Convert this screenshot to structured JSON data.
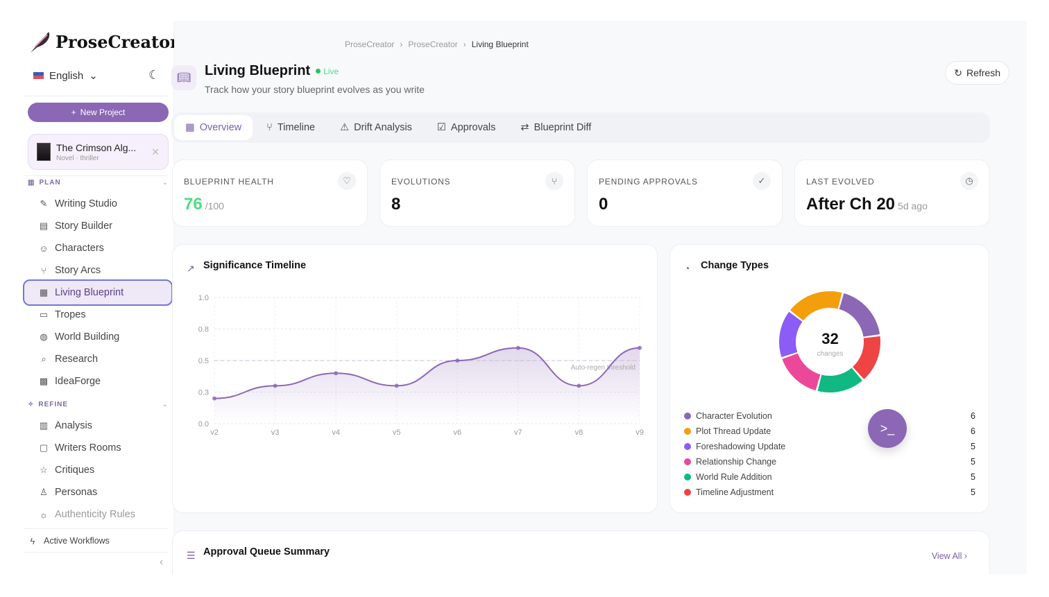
{
  "app": {
    "name": "ProseCreator",
    "language": "English",
    "new_project": "New Project"
  },
  "project": {
    "title": "The Crimson Alg...",
    "subtitle": "Novel · thriller"
  },
  "sidebar": {
    "plan_label": "PLAN",
    "refine_label": "REFINE",
    "plan_items": [
      {
        "label": "Writing Studio",
        "icon": "✎"
      },
      {
        "label": "Story Builder",
        "icon": "▤"
      },
      {
        "label": "Characters",
        "icon": "☺"
      },
      {
        "label": "Story Arcs",
        "icon": "⑂"
      },
      {
        "label": "Living Blueprint",
        "icon": "▦"
      },
      {
        "label": "Tropes",
        "icon": "▭"
      },
      {
        "label": "World Building",
        "icon": "◍"
      },
      {
        "label": "Research",
        "icon": "⌕"
      },
      {
        "label": "IdeaForge",
        "icon": "▩"
      }
    ],
    "refine_items": [
      {
        "label": "Analysis",
        "icon": "▥"
      },
      {
        "label": "Writers Rooms",
        "icon": "▢"
      },
      {
        "label": "Critiques",
        "icon": "☆"
      },
      {
        "label": "Personas",
        "icon": "♙"
      },
      {
        "label": "Authenticity Rules",
        "icon": "☼"
      }
    ],
    "active_workflows": "Active Workflows"
  },
  "breadcrumb": [
    "ProseCreator",
    "ProseCreator",
    "Living Blueprint"
  ],
  "page": {
    "title": "Living Blueprint",
    "status": "Live",
    "subtitle": "Track how your story blueprint evolves as you write",
    "refresh": "Refresh"
  },
  "tabs": [
    {
      "label": "Overview",
      "icon": "▦"
    },
    {
      "label": "Timeline",
      "icon": "⑂"
    },
    {
      "label": "Drift Analysis",
      "icon": "⚠"
    },
    {
      "label": "Approvals",
      "icon": "☑"
    },
    {
      "label": "Blueprint Diff",
      "icon": "⇄"
    }
  ],
  "stats": [
    {
      "label": "BLUEPRINT HEALTH",
      "value": "76",
      "suffix": "/100",
      "icon": "♡",
      "color": "#4ade80"
    },
    {
      "label": "EVOLUTIONS",
      "value": "8",
      "icon": "⑂"
    },
    {
      "label": "PENDING APPROVALS",
      "value": "0",
      "icon": "✓"
    },
    {
      "label": "LAST EVOLVED",
      "value": "After Ch 20",
      "suffix": "5d ago",
      "icon": "◷"
    }
  ],
  "chart_data": [
    {
      "type": "area",
      "title": "Significance Timeline",
      "x": [
        "v2",
        "v3",
        "v4",
        "v5",
        "v6",
        "v7",
        "v8",
        "v9"
      ],
      "values": [
        0.2,
        0.3,
        0.4,
        0.3,
        0.5,
        0.6,
        0.3,
        0.6
      ],
      "ylim": [
        0,
        1
      ],
      "yticks": [
        0,
        0.25,
        0.5,
        0.75,
        1
      ],
      "ytick_labels": [
        "0.0",
        "0.3",
        "0.5",
        "0.8",
        "1.0"
      ],
      "threshold": {
        "value": 0.5,
        "label": "Auto-regen threshold"
      },
      "grid": true,
      "color": "#8b67b5"
    },
    {
      "type": "pie",
      "title": "Change Types",
      "total": "32",
      "total_label": "changes",
      "slices": [
        {
          "name": "Character Evolution",
          "value": 6,
          "color": "#8b67b5"
        },
        {
          "name": "Plot Thread Update",
          "value": 6,
          "color": "#f59e0b"
        },
        {
          "name": "Foreshadowing Update",
          "value": 5,
          "color": "#8b5cf6"
        },
        {
          "name": "Relationship Change",
          "value": 5,
          "color": "#ec4899"
        },
        {
          "name": "World Rule Addition",
          "value": 5,
          "color": "#10b981"
        },
        {
          "name": "Timeline Adjustment",
          "value": 5,
          "color": "#ef4444"
        }
      ]
    }
  ],
  "approval": {
    "title": "Approval Queue Summary",
    "view_all": "View All"
  }
}
